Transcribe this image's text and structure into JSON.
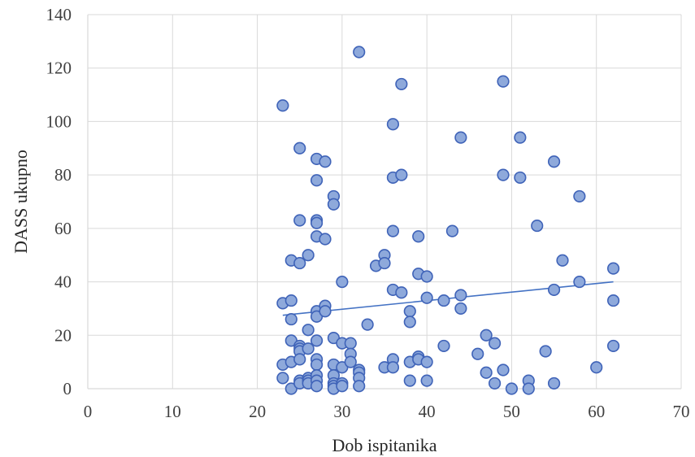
{
  "chart_data": {
    "type": "scatter",
    "title": "",
    "xlabel": "Dob ispitanika",
    "ylabel": "DASS ukupno",
    "xlim": [
      0,
      70
    ],
    "ylim": [
      0,
      140
    ],
    "x_ticks": [
      0,
      10,
      20,
      30,
      40,
      50,
      60,
      70
    ],
    "y_ticks": [
      0,
      20,
      40,
      60,
      80,
      100,
      120,
      140
    ],
    "grid": true,
    "legend": "none",
    "point_color": "#8ea9db",
    "point_edge_color": "#3f63b8",
    "trendline": {
      "type": "linear",
      "x": [
        23,
        62
      ],
      "y": [
        27.5,
        40
      ],
      "color": "#4472c4"
    },
    "points": [
      [
        23,
        106
      ],
      [
        23,
        32
      ],
      [
        23,
        9
      ],
      [
        23,
        4
      ],
      [
        24,
        48
      ],
      [
        24,
        33
      ],
      [
        24,
        26
      ],
      [
        24,
        18
      ],
      [
        24,
        10
      ],
      [
        24,
        0
      ],
      [
        25,
        90
      ],
      [
        25,
        63
      ],
      [
        25,
        47
      ],
      [
        25,
        16
      ],
      [
        25,
        15
      ],
      [
        25,
        14
      ],
      [
        25,
        11
      ],
      [
        25,
        3
      ],
      [
        25,
        2
      ],
      [
        26,
        50
      ],
      [
        26,
        22
      ],
      [
        26,
        15
      ],
      [
        26,
        4
      ],
      [
        26,
        3
      ],
      [
        26,
        2
      ],
      [
        27,
        86
      ],
      [
        27,
        78
      ],
      [
        27,
        63
      ],
      [
        27,
        62
      ],
      [
        27,
        57
      ],
      [
        27,
        29
      ],
      [
        27,
        27
      ],
      [
        27,
        18
      ],
      [
        27,
        11
      ],
      [
        27,
        9
      ],
      [
        27,
        5
      ],
      [
        27,
        3
      ],
      [
        27,
        1
      ],
      [
        28,
        85
      ],
      [
        28,
        56
      ],
      [
        28,
        31
      ],
      [
        28,
        29
      ],
      [
        29,
        72
      ],
      [
        29,
        69
      ],
      [
        29,
        19
      ],
      [
        29,
        9
      ],
      [
        29,
        5
      ],
      [
        29,
        2
      ],
      [
        29,
        1
      ],
      [
        29,
        0
      ],
      [
        30,
        40
      ],
      [
        30,
        17
      ],
      [
        30,
        8
      ],
      [
        30,
        2
      ],
      [
        30,
        1
      ],
      [
        31,
        17
      ],
      [
        31,
        13
      ],
      [
        31,
        10
      ],
      [
        32,
        126
      ],
      [
        32,
        7
      ],
      [
        32,
        6
      ],
      [
        32,
        4
      ],
      [
        32,
        1
      ],
      [
        33,
        24
      ],
      [
        34,
        46
      ],
      [
        35,
        50
      ],
      [
        35,
        47
      ],
      [
        35,
        8
      ],
      [
        36,
        99
      ],
      [
        36,
        79
      ],
      [
        36,
        59
      ],
      [
        36,
        37
      ],
      [
        36,
        11
      ],
      [
        36,
        8
      ],
      [
        37,
        114
      ],
      [
        37,
        80
      ],
      [
        37,
        36
      ],
      [
        38,
        29
      ],
      [
        38,
        25
      ],
      [
        38,
        10
      ],
      [
        38,
        3
      ],
      [
        39,
        57
      ],
      [
        39,
        43
      ],
      [
        39,
        12
      ],
      [
        39,
        11
      ],
      [
        40,
        42
      ],
      [
        40,
        34
      ],
      [
        40,
        10
      ],
      [
        40,
        3
      ],
      [
        42,
        33
      ],
      [
        42,
        16
      ],
      [
        43,
        59
      ],
      [
        44,
        94
      ],
      [
        44,
        35
      ],
      [
        44,
        30
      ],
      [
        46,
        13
      ],
      [
        47,
        20
      ],
      [
        47,
        6
      ],
      [
        48,
        17
      ],
      [
        48,
        2
      ],
      [
        49,
        115
      ],
      [
        49,
        80
      ],
      [
        49,
        7
      ],
      [
        50,
        0
      ],
      [
        51,
        94
      ],
      [
        51,
        79
      ],
      [
        52,
        3
      ],
      [
        52,
        0
      ],
      [
        53,
        61
      ],
      [
        54,
        14
      ],
      [
        55,
        85
      ],
      [
        55,
        37
      ],
      [
        55,
        2
      ],
      [
        56,
        48
      ],
      [
        58,
        72
      ],
      [
        58,
        40
      ],
      [
        60,
        8
      ],
      [
        62,
        45
      ],
      [
        62,
        33
      ],
      [
        62,
        16
      ]
    ]
  }
}
